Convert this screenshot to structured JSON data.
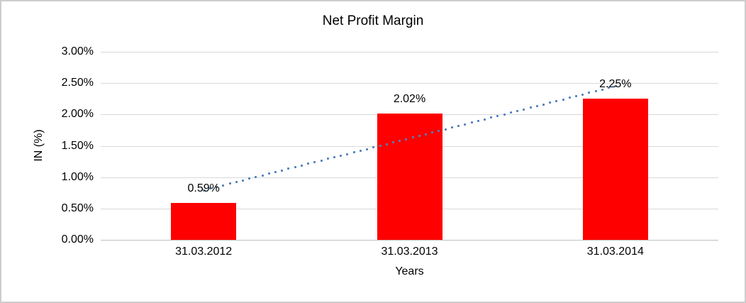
{
  "chart_data": {
    "type": "bar",
    "title": "Net Profit Margin",
    "xlabel": "Years",
    "ylabel": "IN (%)",
    "categories": [
      "31.03.2012",
      "31.03.2013",
      "31.03.2014"
    ],
    "values": [
      0.59,
      2.02,
      2.25
    ],
    "data_labels": [
      "0.59%",
      "2.02%",
      "2.25%"
    ],
    "y_ticks": [
      "0.00%",
      "0.50%",
      "1.00%",
      "1.50%",
      "2.00%",
      "2.50%",
      "3.00%"
    ],
    "ylim": [
      0,
      3.0
    ],
    "grid": true,
    "legend": false,
    "bar_color": "#ff0000",
    "gridline_color": "#d9d9d9",
    "axis_line_color": "#bfbfbf",
    "trendline": {
      "type": "linear",
      "style": "dotted",
      "color": "#4f81bd"
    }
  }
}
